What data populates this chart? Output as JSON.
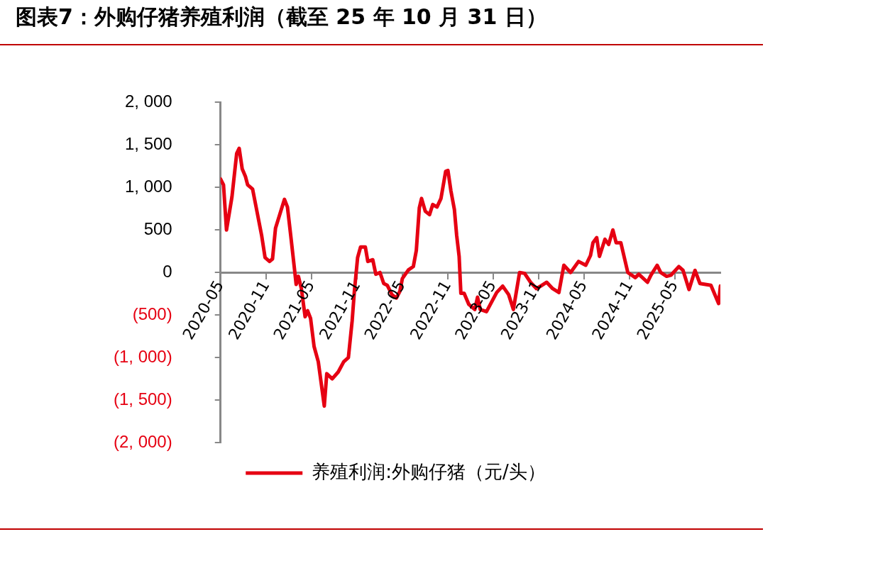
{
  "chart_data": {
    "type": "line",
    "title": "图表7：外购仔猪养殖利润（截至 25 年 10 月 31 日）",
    "x": [
      "2020-05-01",
      "2020-05-13",
      "2020-05-25",
      "2020-06-16",
      "2020-07-05",
      "2020-07-15",
      "2020-07-27",
      "2020-08-09",
      "2020-08-18",
      "2020-09-07",
      "2020-09-21",
      "2020-10-13",
      "2020-10-27",
      "2020-11-14",
      "2020-11-26",
      "2020-12-08",
      "2020-12-27",
      "2021-01-13",
      "2021-01-25",
      "2021-02-07",
      "2021-02-23",
      "2021-03-01",
      "2021-03-10",
      "2021-03-22",
      "2021-04-06",
      "2021-04-16",
      "2021-04-28",
      "2021-05-12",
      "2021-05-29",
      "2021-06-10",
      "2021-06-22",
      "2021-07-02",
      "2021-07-24",
      "2021-08-17",
      "2021-09-08",
      "2021-09-27",
      "2021-10-12",
      "2021-10-21",
      "2021-11-03",
      "2021-11-15",
      "2021-12-04",
      "2021-12-14",
      "2022-01-03",
      "2022-01-15",
      "2022-02-01",
      "2022-02-16",
      "2022-03-02",
      "2022-03-21",
      "2022-04-08",
      "2022-04-22",
      "2022-05-02",
      "2022-05-14",
      "2022-05-26",
      "2022-06-15",
      "2022-06-27",
      "2022-07-09",
      "2022-07-18",
      "2022-08-02",
      "2022-08-19",
      "2022-09-01",
      "2022-09-18",
      "2022-10-04",
      "2022-10-23",
      "2022-11-01",
      "2022-11-13",
      "2022-11-27",
      "2022-12-06",
      "2022-12-16",
      "2022-12-23",
      "2023-01-05",
      "2023-01-24",
      "2023-02-17",
      "2023-02-28",
      "2023-03-11",
      "2023-04-05",
      "2023-05-16",
      "2023-06-09",
      "2023-07-03",
      "2023-07-22",
      "2023-08-16",
      "2023-09-05",
      "2023-09-29",
      "2023-10-23",
      "2023-12-03",
      "2023-12-27",
      "2024-01-21",
      "2024-02-10",
      "2024-03-08",
      "2024-04-09",
      "2024-05-08",
      "2024-05-27",
      "2024-06-06",
      "2024-06-21",
      "2024-07-02",
      "2024-07-24",
      "2024-08-08",
      "2024-08-25",
      "2024-09-07",
      "2024-09-26",
      "2024-10-24",
      "2024-11-23",
      "2024-12-07",
      "2025-01-11",
      "2025-01-25",
      "2025-02-19",
      "2025-03-05",
      "2025-03-29",
      "2025-04-16",
      "2025-05-17",
      "2025-06-03",
      "2025-06-27",
      "2025-07-21",
      "2025-08-10",
      "2025-09-23",
      "2025-10-24",
      "2025-10-31"
    ],
    "series": [
      {
        "name": "养殖利润:外购仔猪（元/头）",
        "color": "#e60012",
        "values": [
          1100,
          1030,
          500,
          890,
          1400,
          1460,
          1220,
          1130,
          1030,
          980,
          770,
          440,
          175,
          130,
          160,
          520,
          700,
          860,
          770,
          440,
          20,
          -140,
          -45,
          -190,
          -520,
          -450,
          -540,
          -870,
          -1050,
          -1310,
          -1570,
          -1190,
          -1250,
          -1170,
          -1050,
          -1000,
          -570,
          -220,
          175,
          300,
          300,
          130,
          150,
          -20,
          0,
          -130,
          -150,
          -260,
          -300,
          -220,
          -70,
          -20,
          30,
          70,
          260,
          760,
          870,
          720,
          680,
          800,
          770,
          870,
          1190,
          1200,
          960,
          740,
          440,
          190,
          -245,
          -245,
          -375,
          -435,
          -290,
          -435,
          -460,
          -235,
          -160,
          -260,
          -435,
          0,
          -10,
          -115,
          -190,
          -115,
          -190,
          -235,
          85,
          0,
          130,
          85,
          200,
          350,
          410,
          190,
          390,
          330,
          500,
          350,
          350,
          0,
          -60,
          -20,
          -115,
          -30,
          85,
          0,
          -45,
          -30,
          70,
          25,
          -200,
          25,
          -130,
          -150,
          -365,
          -160
        ]
      }
    ],
    "xlim": [
      "2020-05-01",
      "2025-10-31"
    ],
    "xticks": [
      {
        "value": "2020-05-01",
        "label": "2020-05"
      },
      {
        "value": "2020-11-01",
        "label": "2020-11"
      },
      {
        "value": "2021-05-01",
        "label": "2021-05"
      },
      {
        "value": "2021-11-01",
        "label": "2021-11"
      },
      {
        "value": "2022-05-01",
        "label": "2022-05"
      },
      {
        "value": "2022-11-01",
        "label": "2022-11"
      },
      {
        "value": "2023-05-01",
        "label": "2023-05"
      },
      {
        "value": "2023-11-01",
        "label": "2023-11"
      },
      {
        "value": "2024-05-01",
        "label": "2024-05"
      },
      {
        "value": "2024-11-01",
        "label": "2024-11"
      },
      {
        "value": "2025-05-01",
        "label": "2025-05"
      }
    ],
    "ylim": [
      -2000,
      2000
    ],
    "yticks": [
      {
        "value": 2000,
        "label": "2, 000"
      },
      {
        "value": 1500,
        "label": "1, 500"
      },
      {
        "value": 1000,
        "label": "1, 000"
      },
      500,
      0,
      {
        "value": -500,
        "label": "(500)"
      },
      {
        "value": -1000,
        "label": "(1, 000)"
      },
      {
        "value": -1500,
        "label": "(1, 500)"
      },
      {
        "value": -2000,
        "label": "(2, 000)"
      }
    ],
    "grid": false,
    "legend": "bottom",
    "marker": "none",
    "line_style": "solid"
  }
}
